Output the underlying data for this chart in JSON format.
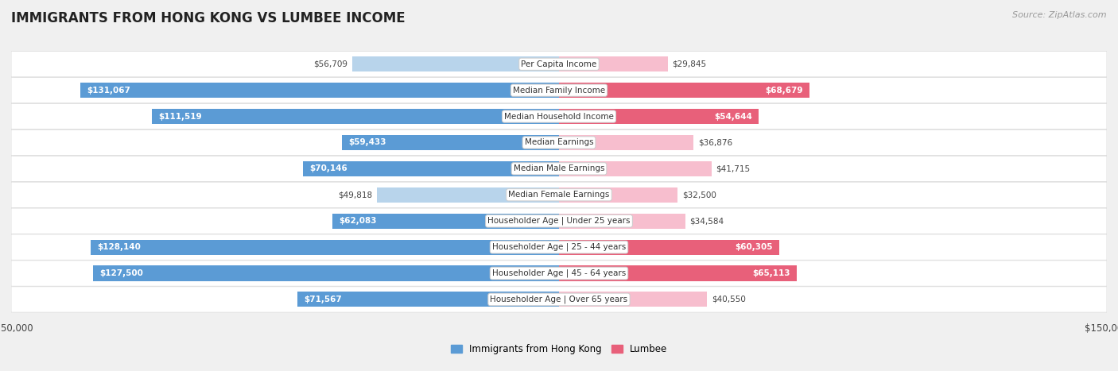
{
  "title": "IMMIGRANTS FROM HONG KONG VS LUMBEE INCOME",
  "source": "Source: ZipAtlas.com",
  "categories": [
    "Per Capita Income",
    "Median Family Income",
    "Median Household Income",
    "Median Earnings",
    "Median Male Earnings",
    "Median Female Earnings",
    "Householder Age | Under 25 years",
    "Householder Age | 25 - 44 years",
    "Householder Age | 45 - 64 years",
    "Householder Age | Over 65 years"
  ],
  "hk_values": [
    56709,
    131067,
    111519,
    59433,
    70146,
    49818,
    62083,
    128140,
    127500,
    71567
  ],
  "lumbee_values": [
    29845,
    68679,
    54644,
    36876,
    41715,
    32500,
    34584,
    60305,
    65113,
    40550
  ],
  "hk_labels": [
    "$56,709",
    "$131,067",
    "$111,519",
    "$59,433",
    "$70,146",
    "$49,818",
    "$62,083",
    "$128,140",
    "$127,500",
    "$71,567"
  ],
  "lumbee_labels": [
    "$29,845",
    "$68,679",
    "$54,644",
    "$36,876",
    "$41,715",
    "$32,500",
    "$34,584",
    "$60,305",
    "$65,113",
    "$40,550"
  ],
  "max_val": 150000,
  "hk_color_light": "#b8d4eb",
  "hk_color_dark": "#5b9bd5",
  "lumbee_color_light": "#f7bece",
  "lumbee_color_dark": "#e8607a",
  "bar_height": 0.58,
  "background_color": "#f0f0f0",
  "row_bg_color": "#ffffff"
}
